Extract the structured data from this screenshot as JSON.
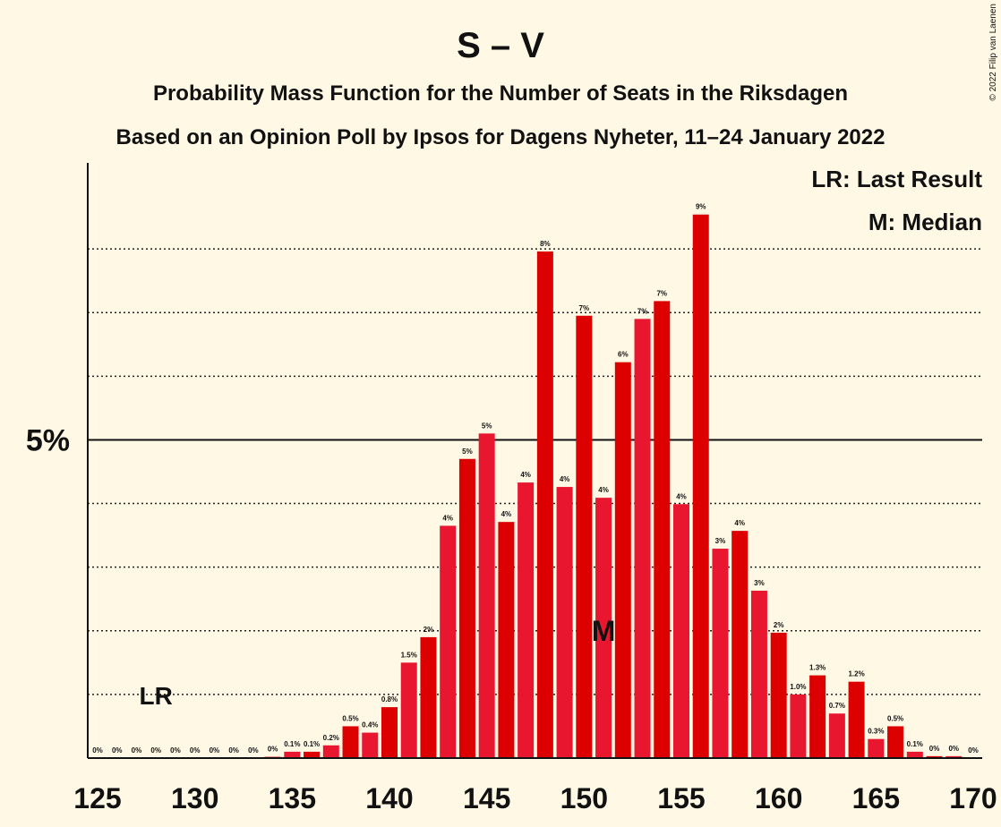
{
  "chart_data": {
    "type": "bar",
    "title": "S – V",
    "subtitle": "Probability Mass Function for the Number of Seats in the Riksdagen",
    "subtitle2": "Based on an Opinion Poll by Ipsos for Dagens Nyheter, 11–24 January 2022",
    "legend_lines": [
      "LR: Last Result",
      "M: Median"
    ],
    "copyright": "© 2022 Filip van Laenen",
    "categories": [
      125,
      126,
      127,
      128,
      129,
      130,
      131,
      132,
      133,
      134,
      135,
      136,
      137,
      138,
      139,
      140,
      141,
      142,
      143,
      144,
      145,
      146,
      147,
      148,
      149,
      150,
      151,
      152,
      153,
      154,
      155,
      156,
      157,
      158,
      159,
      160,
      161,
      162,
      163,
      164,
      165,
      166,
      167,
      168,
      169,
      170
    ],
    "values": [
      0,
      0,
      0,
      0,
      0,
      0,
      0,
      0,
      0,
      0.02,
      0.1,
      0.1,
      0.2,
      0.5,
      0.4,
      0.8,
      1.5,
      1.9,
      3.65,
      4.7,
      5.1,
      3.71,
      4.33,
      7.96,
      4.26,
      6.95,
      4.09,
      6.22,
      6.9,
      7.18,
      3.99,
      8.54,
      3.29,
      3.57,
      2.63,
      1.97,
      1.0,
      1.3,
      0.7,
      1.2,
      0.3,
      0.5,
      0.1,
      0.03,
      0.03,
      0
    ],
    "value_labels": [
      "0%",
      "0%",
      "0%",
      "0%",
      "0%",
      "0%",
      "0%",
      "0%",
      "0%",
      "0%",
      "0.1%",
      "0.1%",
      "0.2%",
      "0.5%",
      "0.4%",
      "0.8%",
      "1.5%",
      "2%",
      "4%",
      "5%",
      "5%",
      "4%",
      "4%",
      "8%",
      "4%",
      "7%",
      "4%",
      "6%",
      "7%",
      "7%",
      "4%",
      "9%",
      "3%",
      "4%",
      "3%",
      "2%",
      "1.0%",
      "1.3%",
      "0.7%",
      "1.2%",
      "0.3%",
      "0.5%",
      "0.1%",
      "0%",
      "0%",
      "0%"
    ],
    "colors": [
      "#e8172f",
      "#dd0000"
    ],
    "xlim": [
      125,
      170
    ],
    "xticks": [
      125,
      130,
      135,
      140,
      145,
      150,
      155,
      160,
      165,
      170
    ],
    "ylim": [
      0,
      9
    ],
    "yticks": [
      {
        "value": 5,
        "label": "5%"
      }
    ],
    "dotted_grid": [
      1,
      2,
      3,
      4,
      6,
      7,
      8
    ],
    "annotations": [
      {
        "seat": 128,
        "label": "LR"
      },
      {
        "seat": 151,
        "label": "M"
      }
    ]
  }
}
